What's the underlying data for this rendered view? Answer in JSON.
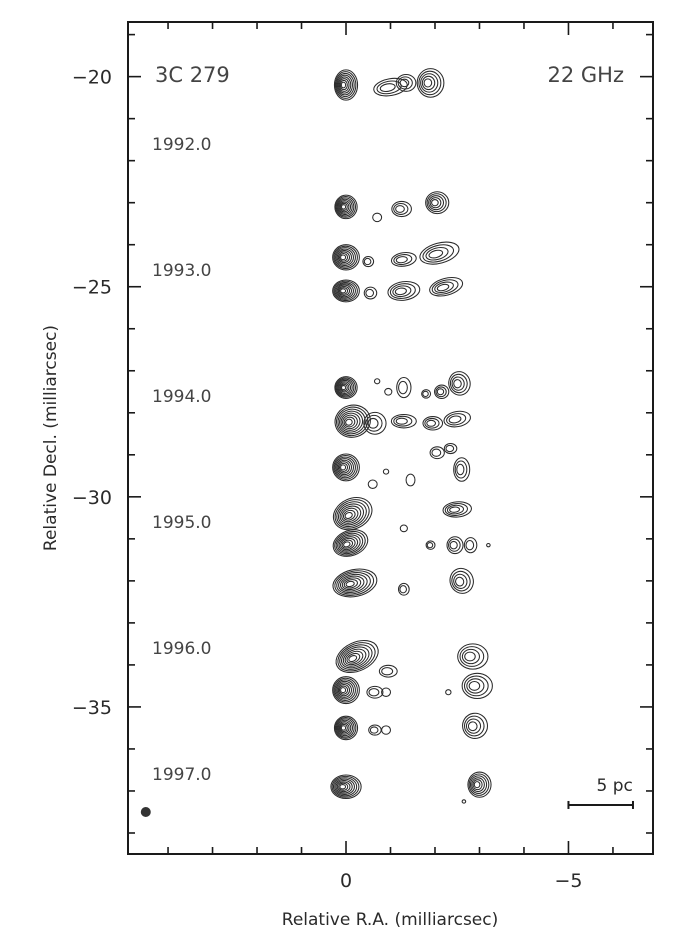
{
  "chart_data": {
    "type": "contour",
    "source_label": "3C 279",
    "frequency_label": "22 GHz",
    "xlabel": "Relative R.A. (milliarcsec)",
    "ylabel": "Relative Decl. (milliarcsec)",
    "xlim": [
      4.9,
      -6.9
    ],
    "ylim": [
      -38.5,
      -18.7
    ],
    "x_axis_reversed": true,
    "x_ticks": [
      0,
      -5
    ],
    "x_tick_labels": [
      "0",
      "−5"
    ],
    "y_ticks": [
      -20,
      -25,
      -30,
      -35
    ],
    "y_tick_labels": [
      "−20",
      "−25",
      "−30",
      "−35"
    ],
    "epoch_labels": [
      {
        "label": "1992.0",
        "decl": -21.6
      },
      {
        "label": "1993.0",
        "decl": -24.6
      },
      {
        "label": "1994.0",
        "decl": -27.6
      },
      {
        "label": "1995.0",
        "decl": -30.6
      },
      {
        "label": "1996.0",
        "decl": -33.6
      },
      {
        "label": "1997.0",
        "decl": -36.6
      }
    ],
    "scale_bar": {
      "label": "5 pc",
      "x_start": -5.0,
      "x_end": -6.45,
      "decl": -37.0
    },
    "beam": {
      "ra": 4.5,
      "decl": -37.5
    },
    "series": [
      {
        "offset": -20.2,
        "features": [
          {
            "ra": 0,
            "decl": 0,
            "rx": 0.26,
            "ry": 0.36,
            "levels": 8,
            "angle": 0
          },
          {
            "ra": -1.0,
            "decl": -0.05,
            "rx": 0.38,
            "ry": 0.2,
            "levels": 3,
            "angle": -10
          },
          {
            "ra": -1.35,
            "decl": 0.05,
            "rx": 0.22,
            "ry": 0.2,
            "levels": 3,
            "angle": 0
          },
          {
            "ra": -1.9,
            "decl": 0.05,
            "rx": 0.3,
            "ry": 0.34,
            "levels": 5,
            "angle": 0
          }
        ]
      },
      {
        "offset": -23.1,
        "features": [
          {
            "ra": 0,
            "decl": 0,
            "rx": 0.25,
            "ry": 0.28,
            "levels": 8,
            "angle": 0
          },
          {
            "ra": -0.7,
            "decl": -0.25,
            "rx": 0.1,
            "ry": 0.1,
            "levels": 1,
            "angle": 0
          },
          {
            "ra": -1.25,
            "decl": -0.05,
            "rx": 0.22,
            "ry": 0.18,
            "levels": 3,
            "angle": 0
          },
          {
            "ra": -2.05,
            "decl": 0.1,
            "rx": 0.26,
            "ry": 0.26,
            "levels": 5,
            "angle": 0
          }
        ]
      },
      {
        "offset": -24.3,
        "features": [
          {
            "ra": 0,
            "decl": 0,
            "rx": 0.3,
            "ry": 0.3,
            "levels": 8,
            "angle": 0
          },
          {
            "ra": -0.5,
            "decl": -0.1,
            "rx": 0.12,
            "ry": 0.12,
            "levels": 2,
            "angle": 0
          },
          {
            "ra": -1.3,
            "decl": -0.05,
            "rx": 0.28,
            "ry": 0.16,
            "levels": 3,
            "angle": -8
          },
          {
            "ra": -2.1,
            "decl": 0.1,
            "rx": 0.45,
            "ry": 0.24,
            "levels": 4,
            "angle": -15
          }
        ]
      },
      {
        "offset": -25.1,
        "features": [
          {
            "ra": 0,
            "decl": 0,
            "rx": 0.3,
            "ry": 0.26,
            "levels": 8,
            "angle": 0
          },
          {
            "ra": -0.55,
            "decl": -0.05,
            "rx": 0.14,
            "ry": 0.14,
            "levels": 2,
            "angle": 0
          },
          {
            "ra": -1.3,
            "decl": 0,
            "rx": 0.36,
            "ry": 0.22,
            "levels": 4,
            "angle": -8
          },
          {
            "ra": -2.25,
            "decl": 0.1,
            "rx": 0.38,
            "ry": 0.2,
            "levels": 4,
            "angle": -15
          }
        ]
      },
      {
        "offset": -27.4,
        "features": [
          {
            "ra": 0,
            "decl": 0,
            "rx": 0.25,
            "ry": 0.26,
            "levels": 8,
            "angle": 0
          },
          {
            "ra": -0.7,
            "decl": 0.15,
            "rx": 0.06,
            "ry": 0.06,
            "levels": 1,
            "angle": 0
          },
          {
            "ra": -0.95,
            "decl": -0.1,
            "rx": 0.08,
            "ry": 0.08,
            "levels": 1,
            "angle": 0
          },
          {
            "ra": -1.3,
            "decl": 0,
            "rx": 0.16,
            "ry": 0.24,
            "levels": 2,
            "angle": 0
          },
          {
            "ra": -1.8,
            "decl": -0.15,
            "rx": 0.1,
            "ry": 0.1,
            "levels": 2,
            "angle": 0
          },
          {
            "ra": -2.15,
            "decl": -0.1,
            "rx": 0.16,
            "ry": 0.16,
            "levels": 3,
            "angle": 0
          },
          {
            "ra": -2.55,
            "decl": 0.1,
            "rx": 0.24,
            "ry": 0.28,
            "levels": 4,
            "angle": -10
          }
        ]
      },
      {
        "offset": -28.2,
        "features": [
          {
            "ra": -0.15,
            "decl": 0,
            "rx": 0.4,
            "ry": 0.38,
            "levels": 8,
            "angle": -15
          },
          {
            "ra": -0.65,
            "decl": -0.05,
            "rx": 0.25,
            "ry": 0.26,
            "levels": 3,
            "angle": 0
          },
          {
            "ra": -1.3,
            "decl": 0,
            "rx": 0.28,
            "ry": 0.16,
            "levels": 3,
            "angle": 0
          },
          {
            "ra": -1.95,
            "decl": -0.05,
            "rx": 0.22,
            "ry": 0.16,
            "levels": 3,
            "angle": 0
          },
          {
            "ra": -2.5,
            "decl": 0.05,
            "rx": 0.3,
            "ry": 0.18,
            "levels": 3,
            "angle": -10
          }
        ]
      },
      {
        "offset": -29.3,
        "features": [
          {
            "ra": 0,
            "decl": 0,
            "rx": 0.3,
            "ry": 0.32,
            "levels": 8,
            "angle": 0
          },
          {
            "ra": -0.6,
            "decl": -0.4,
            "rx": 0.1,
            "ry": 0.1,
            "levels": 1,
            "angle": 0
          },
          {
            "ra": -0.9,
            "decl": -0.1,
            "rx": 0.06,
            "ry": 0.06,
            "levels": 1,
            "angle": 0
          },
          {
            "ra": -1.45,
            "decl": -0.3,
            "rx": 0.1,
            "ry": 0.14,
            "levels": 1,
            "angle": 0
          },
          {
            "ra": -2.05,
            "decl": 0.35,
            "rx": 0.16,
            "ry": 0.14,
            "levels": 2,
            "angle": 0
          },
          {
            "ra": -2.35,
            "decl": 0.45,
            "rx": 0.14,
            "ry": 0.12,
            "levels": 2,
            "angle": 0
          },
          {
            "ra": -2.6,
            "decl": -0.05,
            "rx": 0.18,
            "ry": 0.28,
            "levels": 3,
            "angle": 0
          }
        ]
      },
      {
        "offset": -30.3,
        "features": [
          {
            "ra": -0.15,
            "decl": -0.1,
            "rx": 0.45,
            "ry": 0.36,
            "levels": 8,
            "angle": -25
          },
          {
            "ra": -1.3,
            "decl": -0.45,
            "rx": 0.08,
            "ry": 0.08,
            "levels": 1,
            "angle": 0
          },
          {
            "ra": -2.5,
            "decl": -0.0,
            "rx": 0.32,
            "ry": 0.18,
            "levels": 4,
            "angle": -5
          }
        ]
      },
      {
        "offset": -31.1,
        "features": [
          {
            "ra": -0.1,
            "decl": 0,
            "rx": 0.4,
            "ry": 0.3,
            "levels": 8,
            "angle": -20
          },
          {
            "ra": -1.9,
            "decl": -0.05,
            "rx": 0.1,
            "ry": 0.1,
            "levels": 2,
            "angle": 0
          },
          {
            "ra": -2.45,
            "decl": -0.05,
            "rx": 0.18,
            "ry": 0.2,
            "levels": 3,
            "angle": 0
          },
          {
            "ra": -2.8,
            "decl": -0.05,
            "rx": 0.14,
            "ry": 0.18,
            "levels": 2,
            "angle": 0
          },
          {
            "ra": -3.2,
            "decl": -0.05,
            "rx": 0.04,
            "ry": 0.04,
            "levels": 1,
            "angle": 0
          }
        ]
      },
      {
        "offset": -32.0,
        "features": [
          {
            "ra": -0.2,
            "decl": -0.05,
            "rx": 0.5,
            "ry": 0.32,
            "levels": 8,
            "angle": -12
          },
          {
            "ra": -1.3,
            "decl": -0.2,
            "rx": 0.12,
            "ry": 0.14,
            "levels": 2,
            "angle": 0
          },
          {
            "ra": -2.6,
            "decl": 0.0,
            "rx": 0.26,
            "ry": 0.3,
            "levels": 4,
            "angle": -20
          }
        ]
      },
      {
        "offset": -33.8,
        "features": [
          {
            "ra": -0.25,
            "decl": 0,
            "rx": 0.5,
            "ry": 0.34,
            "levels": 8,
            "angle": -25
          },
          {
            "ra": -0.95,
            "decl": -0.35,
            "rx": 0.2,
            "ry": 0.14,
            "levels": 2,
            "angle": 0
          },
          {
            "ra": -2.85,
            "decl": 0.0,
            "rx": 0.34,
            "ry": 0.3,
            "levels": 4,
            "angle": 0
          }
        ]
      },
      {
        "offset": -34.6,
        "features": [
          {
            "ra": 0,
            "decl": 0,
            "rx": 0.3,
            "ry": 0.32,
            "levels": 8,
            "angle": 0
          },
          {
            "ra": -0.65,
            "decl": -0.05,
            "rx": 0.18,
            "ry": 0.14,
            "levels": 2,
            "angle": 0
          },
          {
            "ra": -0.9,
            "decl": -0.05,
            "rx": 0.1,
            "ry": 0.1,
            "levels": 1,
            "angle": 0
          },
          {
            "ra": -2.3,
            "decl": -0.05,
            "rx": 0.06,
            "ry": 0.06,
            "levels": 1,
            "angle": 0
          },
          {
            "ra": -2.95,
            "decl": 0.1,
            "rx": 0.34,
            "ry": 0.3,
            "levels": 4,
            "angle": 0
          }
        ]
      },
      {
        "offset": -35.5,
        "features": [
          {
            "ra": 0,
            "decl": 0,
            "rx": 0.26,
            "ry": 0.28,
            "levels": 8,
            "angle": 0
          },
          {
            "ra": -0.65,
            "decl": -0.05,
            "rx": 0.14,
            "ry": 0.12,
            "levels": 2,
            "angle": 0
          },
          {
            "ra": -0.9,
            "decl": -0.05,
            "rx": 0.1,
            "ry": 0.1,
            "levels": 1,
            "angle": 0
          },
          {
            "ra": -2.9,
            "decl": 0.05,
            "rx": 0.28,
            "ry": 0.3,
            "levels": 4,
            "angle": -10
          }
        ]
      },
      {
        "offset": -36.9,
        "features": [
          {
            "ra": 0,
            "decl": 0,
            "rx": 0.34,
            "ry": 0.28,
            "levels": 8,
            "angle": 0
          },
          {
            "ra": -3.0,
            "decl": 0.05,
            "rx": 0.26,
            "ry": 0.3,
            "levels": 6,
            "angle": 0
          },
          {
            "ra": -2.65,
            "decl": -0.35,
            "rx": 0.04,
            "ry": 0.04,
            "levels": 1,
            "angle": 0
          }
        ]
      }
    ]
  }
}
